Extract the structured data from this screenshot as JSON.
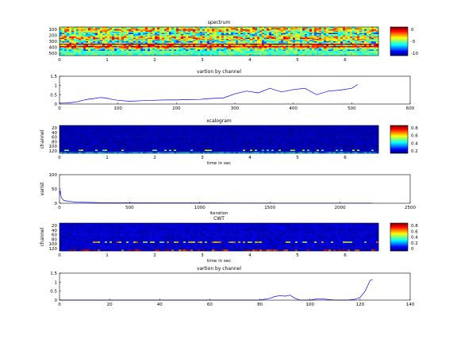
{
  "chart_data": [
    {
      "type": "heatmap",
      "title": "spectrum",
      "xticks": [
        "0",
        "1",
        "2",
        "3",
        "4",
        "5",
        "6"
      ],
      "yticks": [
        "100",
        "200",
        "300",
        "400",
        "500"
      ],
      "colorbar_ticks": [
        "0",
        "-5",
        "-10"
      ],
      "colormap": "jet",
      "xlim": [
        0,
        6.7
      ],
      "ylim": [
        0,
        512
      ]
    },
    {
      "type": "line",
      "title": "vartion by channel",
      "xticks": [
        "0",
        "100",
        "200",
        "300",
        "400",
        "500",
        "600"
      ],
      "yticks": [
        "0",
        "0.5",
        "1",
        "1.5"
      ],
      "xlim": [
        0,
        600
      ],
      "ylim": [
        0,
        1.5
      ],
      "series": [
        {
          "x": [
            0,
            10,
            20,
            30,
            40,
            50,
            60,
            70,
            80,
            90,
            100,
            120,
            140,
            160,
            180,
            200,
            220,
            240,
            260,
            280,
            300,
            320,
            340,
            360,
            380,
            400,
            420,
            440,
            460,
            480,
            500,
            510
          ],
          "y": [
            0.05,
            0.05,
            0.08,
            0.12,
            0.2,
            0.26,
            0.3,
            0.35,
            0.32,
            0.25,
            0.2,
            0.15,
            0.18,
            0.2,
            0.22,
            0.22,
            0.24,
            0.25,
            0.3,
            0.32,
            0.55,
            0.7,
            0.6,
            0.85,
            0.65,
            0.78,
            0.85,
            0.5,
            0.7,
            0.75,
            0.85,
            1.05
          ],
          "color": "#0000ff"
        }
      ]
    },
    {
      "type": "heatmap",
      "title": "xcalogram",
      "xlabel": "time in sec",
      "ylabel": "channel",
      "xticks": [
        "0",
        "1",
        "2",
        "3",
        "4",
        "5",
        "6"
      ],
      "yticks": [
        "20",
        "40",
        "60",
        "80",
        "100",
        "120"
      ],
      "colorbar_ticks": [
        "0.8",
        "0.6",
        "0.4",
        "0.2"
      ],
      "colormap": "jet",
      "xlim": [
        0,
        6.7
      ],
      "ylim": [
        0,
        128
      ]
    },
    {
      "type": "line",
      "ylabel": "varist",
      "xlabel": "iteration",
      "xticks": [
        "0",
        "500",
        "1000",
        "1500",
        "2000",
        "2500"
      ],
      "yticks": [
        "0",
        "50",
        "100"
      ],
      "xlim": [
        0,
        2500
      ],
      "ylim": [
        0,
        100
      ],
      "series": [
        {
          "x": [
            0,
            5,
            10,
            20,
            30,
            50,
            80,
            120,
            200,
            300,
            500,
            800,
            1200,
            1600,
            2000,
            2230
          ],
          "y": [
            30,
            45,
            25,
            15,
            10,
            8,
            6,
            4,
            3,
            2,
            1.5,
            1,
            0.8,
            0.6,
            0.5,
            0.5
          ],
          "color": "#0000ff"
        }
      ]
    },
    {
      "type": "heatmap",
      "title": "CWT",
      "xlabel": "time in sec",
      "ylabel": "channel",
      "xticks": [
        "0",
        "1",
        "2",
        "3",
        "4",
        "5",
        "6"
      ],
      "yticks": [
        "20",
        "40",
        "60",
        "80",
        "100",
        "120"
      ],
      "colorbar_ticks": [
        "0.8",
        "0.6",
        "0.4",
        "0.2",
        "0"
      ],
      "colormap": "jet",
      "xlim": [
        0,
        6.7
      ],
      "ylim": [
        0,
        128
      ]
    },
    {
      "type": "line",
      "title": "vartion by channel",
      "xticks": [
        "0",
        "20",
        "40",
        "60",
        "80",
        "100",
        "120",
        "140"
      ],
      "yticks": [
        "0",
        "0.5",
        "1",
        "1.5"
      ],
      "xlim": [
        0,
        140
      ],
      "ylim": [
        0,
        1.5
      ],
      "series": [
        {
          "x": [
            0,
            60,
            80,
            84,
            86,
            88,
            90,
            92,
            94,
            96,
            100,
            102,
            104,
            110,
            115,
            118,
            120,
            122,
            124,
            125
          ],
          "y": [
            0,
            0,
            0,
            0.1,
            0.2,
            0.25,
            0.22,
            0.28,
            0.1,
            0,
            0,
            0.05,
            0.08,
            0,
            0,
            0.05,
            0.15,
            0.5,
            1.1,
            1.15
          ],
          "color": "#0000ff"
        }
      ]
    }
  ]
}
